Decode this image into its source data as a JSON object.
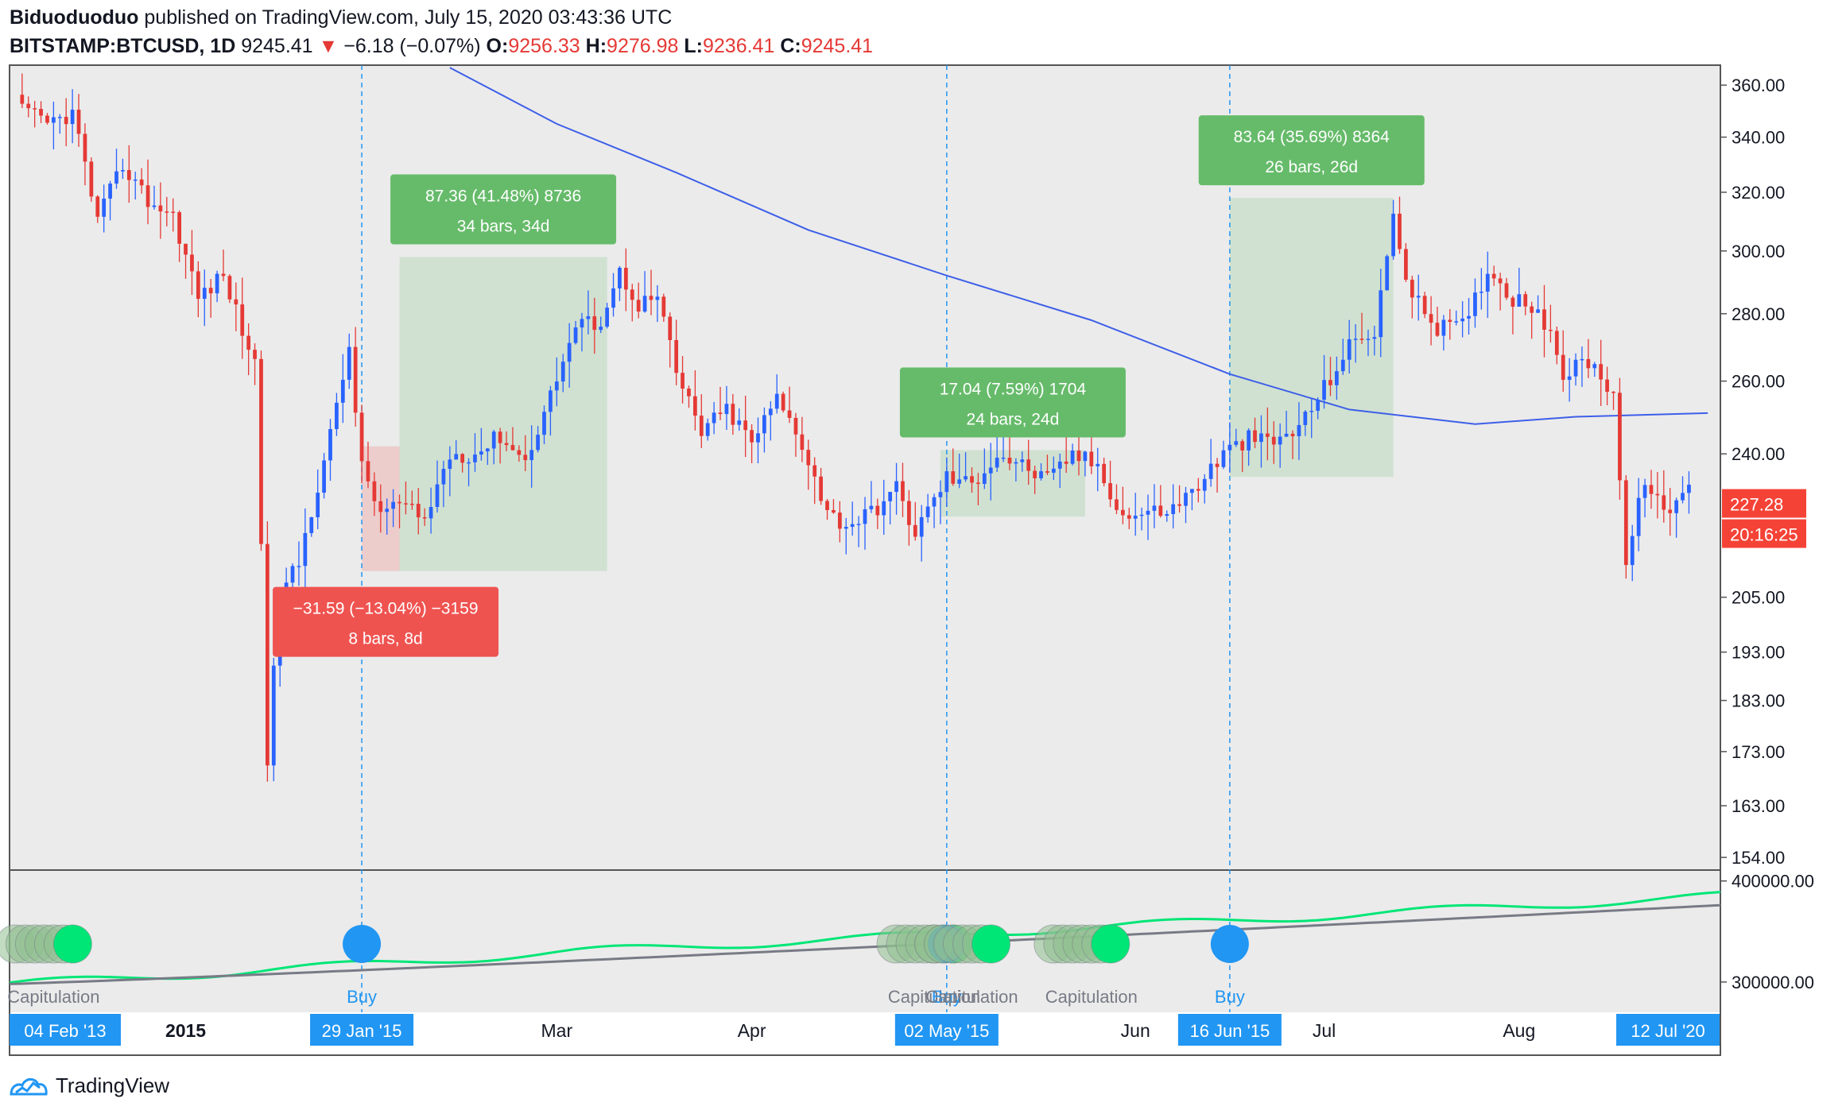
{
  "header": {
    "author": "Biduoduoduo",
    "published": "published on TradingView.com, July 15, 2020 03:43:36 UTC",
    "symbol": "BITSTAMP:BTCUSD, 1D",
    "last": "9245.41",
    "down_arrow": "▼",
    "change": "−6.18 (−0.07%)",
    "o_label": "O:",
    "o": "9256.33",
    "h_label": "H:",
    "h": "9276.98",
    "l_label": "L:",
    "l": "9236.41",
    "c_label": "C:",
    "c": "9245.41"
  },
  "colors": {
    "up": "#2962ff",
    "down": "#e53935",
    "ma": "#3d5fe8",
    "measure_green": "#66bb6a",
    "measure_red": "#ef5350",
    "plot_bg": "#ebebeb",
    "indicator_green": "#00e676",
    "indicator_gray": "#787b86",
    "buy_blue": "#2196f3"
  },
  "footer": {
    "brand": "TradingView",
    "logo_icon": "tradingview-logo-icon"
  },
  "chart_data": {
    "type": "candlestick",
    "scale": "log",
    "y_ticks": [
      "360.00",
      "340.00",
      "320.00",
      "300.00",
      "280.00",
      "260.00",
      "240.00",
      "205.00",
      "193.00",
      "183.00",
      "173.00",
      "163.00",
      "154.00"
    ],
    "y_tick_values": [
      360,
      340,
      320,
      300,
      280,
      260,
      240,
      205,
      193,
      183,
      173,
      163,
      154
    ],
    "ylim": [
      152,
      368
    ],
    "x_labels": [
      {
        "text": "2015",
        "date": "2015-01-01"
      },
      {
        "text": "Mar",
        "date": "2015-03-01"
      },
      {
        "text": "Apr",
        "date": "2015-04-01"
      },
      {
        "text": "Jun",
        "date": "2015-06-01"
      },
      {
        "text": "Jul",
        "date": "2015-07-01"
      },
      {
        "text": "Aug",
        "date": "2015-08-01"
      }
    ],
    "x_highlights": [
      {
        "text": "04 Feb '13",
        "position": "left-edge"
      },
      {
        "text": "29 Jan '15",
        "date": "2015-01-29"
      },
      {
        "text": "02 May '15",
        "date": "2015-05-02"
      },
      {
        "text": "16 Jun '15",
        "date": "2015-06-16"
      },
      {
        "text": "12 Jul '20",
        "position": "right-edge"
      }
    ],
    "price_label": "227.28",
    "countdown_label": "20:16:25",
    "closes": [
      {
        "date": "2014-12-06",
        "close": 350
      },
      {
        "date": "2014-12-10",
        "close": 345
      },
      {
        "date": "2014-12-14",
        "close": 349
      },
      {
        "date": "2014-12-18",
        "close": 310
      },
      {
        "date": "2014-12-22",
        "close": 330
      },
      {
        "date": "2014-12-26",
        "close": 317
      },
      {
        "date": "2014-12-30",
        "close": 312
      },
      {
        "date": "2015-01-03",
        "close": 285
      },
      {
        "date": "2015-01-07",
        "close": 292
      },
      {
        "date": "2015-01-10",
        "close": 275
      },
      {
        "date": "2015-01-12",
        "close": 265
      },
      {
        "date": "2015-01-14",
        "close": 172
      },
      {
        "date": "2015-01-16",
        "close": 205
      },
      {
        "date": "2015-01-19",
        "close": 213
      },
      {
        "date": "2015-01-22",
        "close": 232
      },
      {
        "date": "2015-01-25",
        "close": 252
      },
      {
        "date": "2015-01-27",
        "close": 270
      },
      {
        "date": "2015-01-29",
        "close": 236
      },
      {
        "date": "2015-02-01",
        "close": 225
      },
      {
        "date": "2015-02-04",
        "close": 227
      },
      {
        "date": "2015-02-08",
        "close": 223
      },
      {
        "date": "2015-02-12",
        "close": 240
      },
      {
        "date": "2015-02-16",
        "close": 240
      },
      {
        "date": "2015-02-20",
        "close": 245
      },
      {
        "date": "2015-02-24",
        "close": 238
      },
      {
        "date": "2015-02-28",
        "close": 256
      },
      {
        "date": "2015-03-04",
        "close": 276
      },
      {
        "date": "2015-03-08",
        "close": 278
      },
      {
        "date": "2015-03-11",
        "close": 293
      },
      {
        "date": "2015-03-14",
        "close": 283
      },
      {
        "date": "2015-03-17",
        "close": 285
      },
      {
        "date": "2015-03-20",
        "close": 262
      },
      {
        "date": "2015-03-24",
        "close": 246
      },
      {
        "date": "2015-03-28",
        "close": 252
      },
      {
        "date": "2015-04-01",
        "close": 243
      },
      {
        "date": "2015-04-05",
        "close": 255
      },
      {
        "date": "2015-04-09",
        "close": 243
      },
      {
        "date": "2015-04-13",
        "close": 225
      },
      {
        "date": "2015-04-16",
        "close": 222
      },
      {
        "date": "2015-04-20",
        "close": 225
      },
      {
        "date": "2015-04-24",
        "close": 231
      },
      {
        "date": "2015-04-27",
        "close": 220
      },
      {
        "date": "2015-05-02",
        "close": 234
      },
      {
        "date": "2015-05-06",
        "close": 232
      },
      {
        "date": "2015-05-10",
        "close": 240
      },
      {
        "date": "2015-05-14",
        "close": 237
      },
      {
        "date": "2015-05-18",
        "close": 233
      },
      {
        "date": "2015-05-22",
        "close": 240
      },
      {
        "date": "2015-05-26",
        "close": 237
      },
      {
        "date": "2015-05-30",
        "close": 224
      },
      {
        "date": "2015-06-03",
        "close": 225
      },
      {
        "date": "2015-06-07",
        "close": 226
      },
      {
        "date": "2015-06-11",
        "close": 232
      },
      {
        "date": "2015-06-15",
        "close": 240
      },
      {
        "date": "2015-06-19",
        "close": 244
      },
      {
        "date": "2015-06-23",
        "close": 243
      },
      {
        "date": "2015-06-27",
        "close": 247
      },
      {
        "date": "2015-07-01",
        "close": 258
      },
      {
        "date": "2015-07-05",
        "close": 270
      },
      {
        "date": "2015-07-09",
        "close": 275
      },
      {
        "date": "2015-07-12",
        "close": 310
      },
      {
        "date": "2015-07-15",
        "close": 285
      },
      {
        "date": "2015-07-19",
        "close": 276
      },
      {
        "date": "2015-07-23",
        "close": 276
      },
      {
        "date": "2015-07-27",
        "close": 294
      },
      {
        "date": "2015-07-31",
        "close": 285
      },
      {
        "date": "2015-08-04",
        "close": 282
      },
      {
        "date": "2015-08-08",
        "close": 262
      },
      {
        "date": "2015-08-12",
        "close": 266
      },
      {
        "date": "2015-08-16",
        "close": 257
      },
      {
        "date": "2015-08-18",
        "close": 212
      },
      {
        "date": "2015-08-21",
        "close": 234
      },
      {
        "date": "2015-08-24",
        "close": 224
      },
      {
        "date": "2015-08-28",
        "close": 232
      }
    ],
    "moving_average": [
      {
        "date": "2015-02-12",
        "value": 367
      },
      {
        "date": "2015-03-01",
        "value": 345
      },
      {
        "date": "2015-03-20",
        "value": 327
      },
      {
        "date": "2015-04-10",
        "value": 307
      },
      {
        "date": "2015-05-02",
        "value": 292
      },
      {
        "date": "2015-05-25",
        "value": 278
      },
      {
        "date": "2015-06-16",
        "value": 262
      },
      {
        "date": "2015-07-05",
        "value": 252
      },
      {
        "date": "2015-07-25",
        "value": 248
      },
      {
        "date": "2015-08-10",
        "value": 250
      },
      {
        "date": "2015-08-31",
        "value": 251
      }
    ],
    "measurements": [
      {
        "line1": "87.36 (41.48%) 8736",
        "line2": "34 bars, 34d",
        "type": "gain",
        "start": "2015-02-04",
        "end": "2015-03-09",
        "from": 211,
        "to": 298
      },
      {
        "line1": "−31.59 (−13.04%) −3159",
        "line2": "8 bars, 8d",
        "type": "loss",
        "start": "2015-01-29",
        "end": "2015-02-04",
        "from": 242,
        "to": 211
      },
      {
        "line1": "17.04 (7.59%) 1704",
        "line2": "24 bars, 24d",
        "type": "gain",
        "start": "2015-05-01",
        "end": "2015-05-24",
        "from": 224,
        "to": 241
      },
      {
        "line1": "83.64 (35.69%) 8364",
        "line2": "26 bars, 26d",
        "type": "gain",
        "start": "2015-06-16",
        "end": "2015-07-12",
        "from": 234,
        "to": 318
      }
    ],
    "indicator": {
      "y_ticks": [
        "400000.00",
        "300000.00"
      ],
      "y_tick_values": [
        400000,
        300000
      ],
      "labels": [
        {
          "text": "Capitulation",
          "date": "2014-12-11",
          "kind": "capitulation"
        },
        {
          "text": "Buy",
          "date": "2015-01-29",
          "kind": "buy"
        },
        {
          "text": "Capitulation",
          "date": "2015-04-30",
          "kind": "capitulation"
        },
        {
          "text": "Buy",
          "date": "2015-05-02",
          "kind": "buy"
        },
        {
          "text": "Capitulation",
          "date": "2015-05-06",
          "kind": "capitulation"
        },
        {
          "text": "Capitulation",
          "date": "2015-05-25",
          "kind": "capitulation"
        },
        {
          "text": "Buy",
          "date": "2015-06-16",
          "kind": "buy"
        }
      ]
    }
  }
}
